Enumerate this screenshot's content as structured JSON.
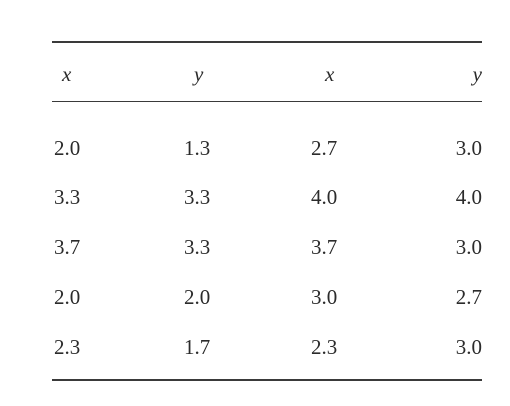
{
  "table": {
    "header": [
      "x",
      "y",
      "x",
      "y"
    ],
    "rows": [
      [
        "2.0",
        "1.3",
        "2.7",
        "3.0"
      ],
      [
        "3.3",
        "3.3",
        "4.0",
        "4.0"
      ],
      [
        "3.7",
        "3.3",
        "3.7",
        "3.0"
      ],
      [
        "2.0",
        "2.0",
        "3.0",
        "2.7"
      ],
      [
        "2.3",
        "1.7",
        "2.3",
        "3.0"
      ]
    ]
  }
}
